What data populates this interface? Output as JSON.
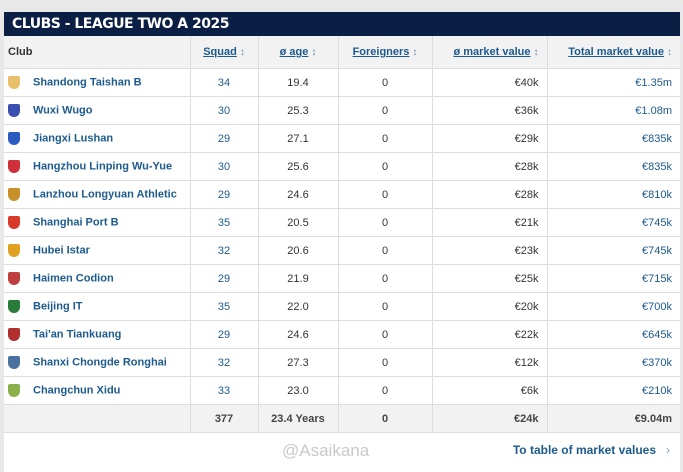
{
  "title": "CLUBS - LEAGUE TWO A 2025",
  "columns": {
    "club": "Club",
    "squad": "Squad",
    "age": "ø age",
    "foreigners": "Foreigners",
    "avg_mv": "ø market value",
    "total_mv": "Total market value"
  },
  "sort_icon": "↕",
  "rows": [
    {
      "club": "Shandong Taishan B",
      "squad": "34",
      "age": "19.4",
      "foreigners": "0",
      "avg_mv": "€40k",
      "total_mv": "€1.35m",
      "crest_color": "#e8c06a"
    },
    {
      "club": "Wuxi Wugo",
      "squad": "30",
      "age": "25.3",
      "foreigners": "0",
      "avg_mv": "€36k",
      "total_mv": "€1.08m",
      "crest_color": "#3a4fb0"
    },
    {
      "club": "Jiangxi Lushan",
      "squad": "29",
      "age": "27.1",
      "foreigners": "0",
      "avg_mv": "€29k",
      "total_mv": "€835k",
      "crest_color": "#2a5bc0"
    },
    {
      "club": "Hangzhou Linping Wu-Yue",
      "squad": "30",
      "age": "25.6",
      "foreigners": "0",
      "avg_mv": "€28k",
      "total_mv": "€835k",
      "crest_color": "#d0303a"
    },
    {
      "club": "Lanzhou Longyuan Athletic",
      "squad": "29",
      "age": "24.6",
      "foreigners": "0",
      "avg_mv": "€28k",
      "total_mv": "€810k",
      "crest_color": "#c8902a"
    },
    {
      "club": "Shanghai Port B",
      "squad": "35",
      "age": "20.5",
      "foreigners": "0",
      "avg_mv": "€21k",
      "total_mv": "€745k",
      "crest_color": "#d83a2a"
    },
    {
      "club": "Hubei Istar",
      "squad": "32",
      "age": "20.6",
      "foreigners": "0",
      "avg_mv": "€23k",
      "total_mv": "€745k",
      "crest_color": "#e0a020"
    },
    {
      "club": "Haimen Codion",
      "squad": "29",
      "age": "21.9",
      "foreigners": "0",
      "avg_mv": "€25k",
      "total_mv": "€715k",
      "crest_color": "#c04040"
    },
    {
      "club": "Beijing IT",
      "squad": "35",
      "age": "22.0",
      "foreigners": "0",
      "avg_mv": "€20k",
      "total_mv": "€700k",
      "crest_color": "#2a7a3a"
    },
    {
      "club": "Tai'an Tiankuang",
      "squad": "29",
      "age": "24.6",
      "foreigners": "0",
      "avg_mv": "€22k",
      "total_mv": "€645k",
      "crest_color": "#b03030"
    },
    {
      "club": "Shanxi Chongde Ronghai",
      "squad": "32",
      "age": "27.3",
      "foreigners": "0",
      "avg_mv": "€12k",
      "total_mv": "€370k",
      "crest_color": "#4a70a0"
    },
    {
      "club": "Changchun Xidu",
      "squad": "33",
      "age": "23.0",
      "foreigners": "0",
      "avg_mv": "€6k",
      "total_mv": "€210k",
      "crest_color": "#8ab04a"
    }
  ],
  "totals": {
    "squad": "377",
    "age": "23.4 Years",
    "foreigners": "0",
    "avg_mv": "€24k",
    "total_mv": "€9.04m"
  },
  "footer": {
    "watermark": "@Asaikana",
    "link": "To table of market values",
    "chevron": "›"
  }
}
